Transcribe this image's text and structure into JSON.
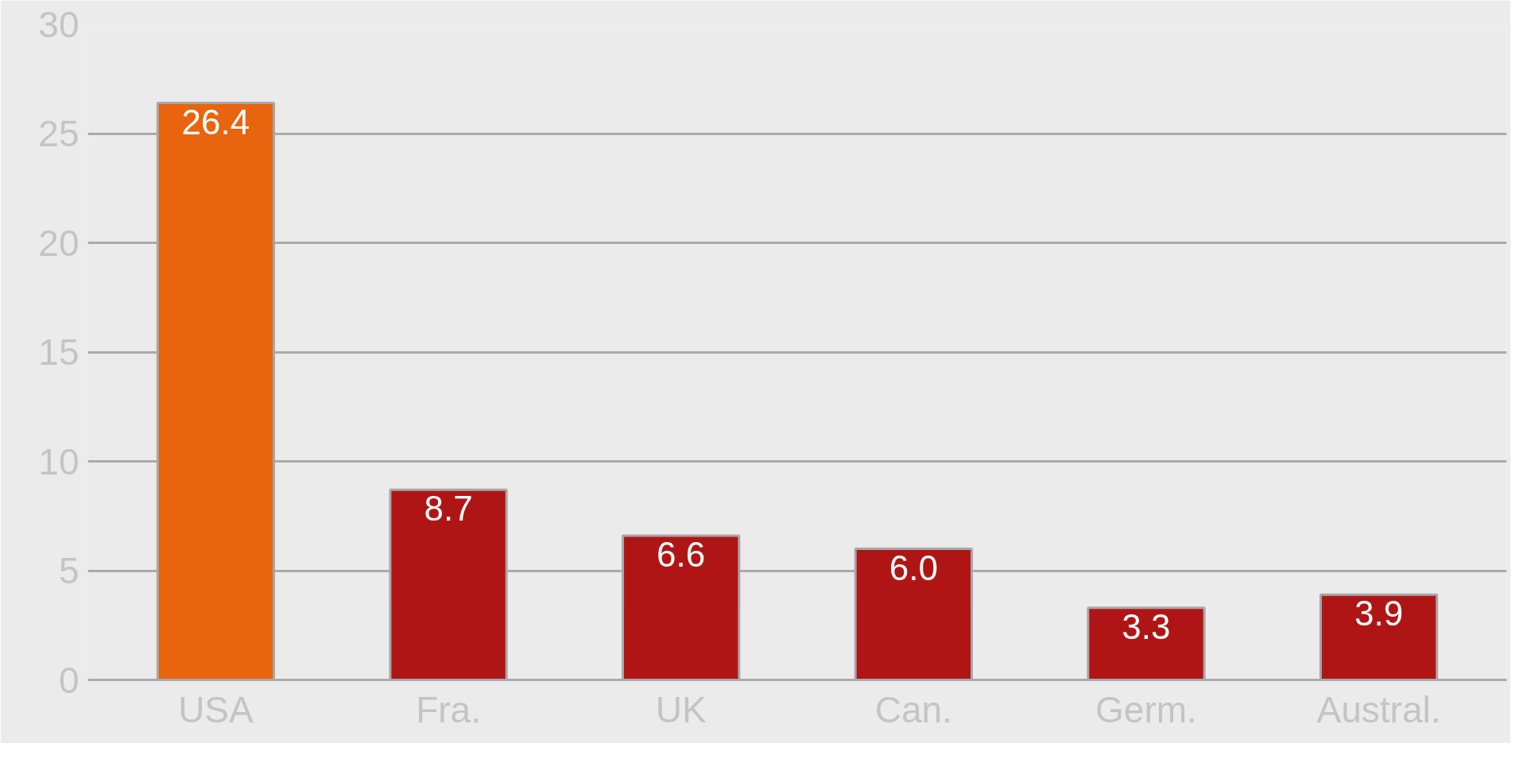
{
  "chart_data": {
    "type": "bar",
    "categories": [
      "USA",
      "Fra.",
      "UK",
      "Can.",
      "Germ.",
      "Austral."
    ],
    "values": [
      26.4,
      8.7,
      6.6,
      6.0,
      3.3,
      3.9
    ],
    "colors": [
      "#e8640f",
      "#b01515",
      "#b01515",
      "#b01515",
      "#b01515",
      "#b01515"
    ],
    "value_labels": [
      "26.4",
      "8.7",
      "6.6",
      "6.0",
      "3.3",
      "3.9"
    ],
    "ylim": [
      0,
      30
    ],
    "yticks": [
      0,
      5,
      10,
      15,
      20,
      25,
      30
    ],
    "grid": "y"
  }
}
